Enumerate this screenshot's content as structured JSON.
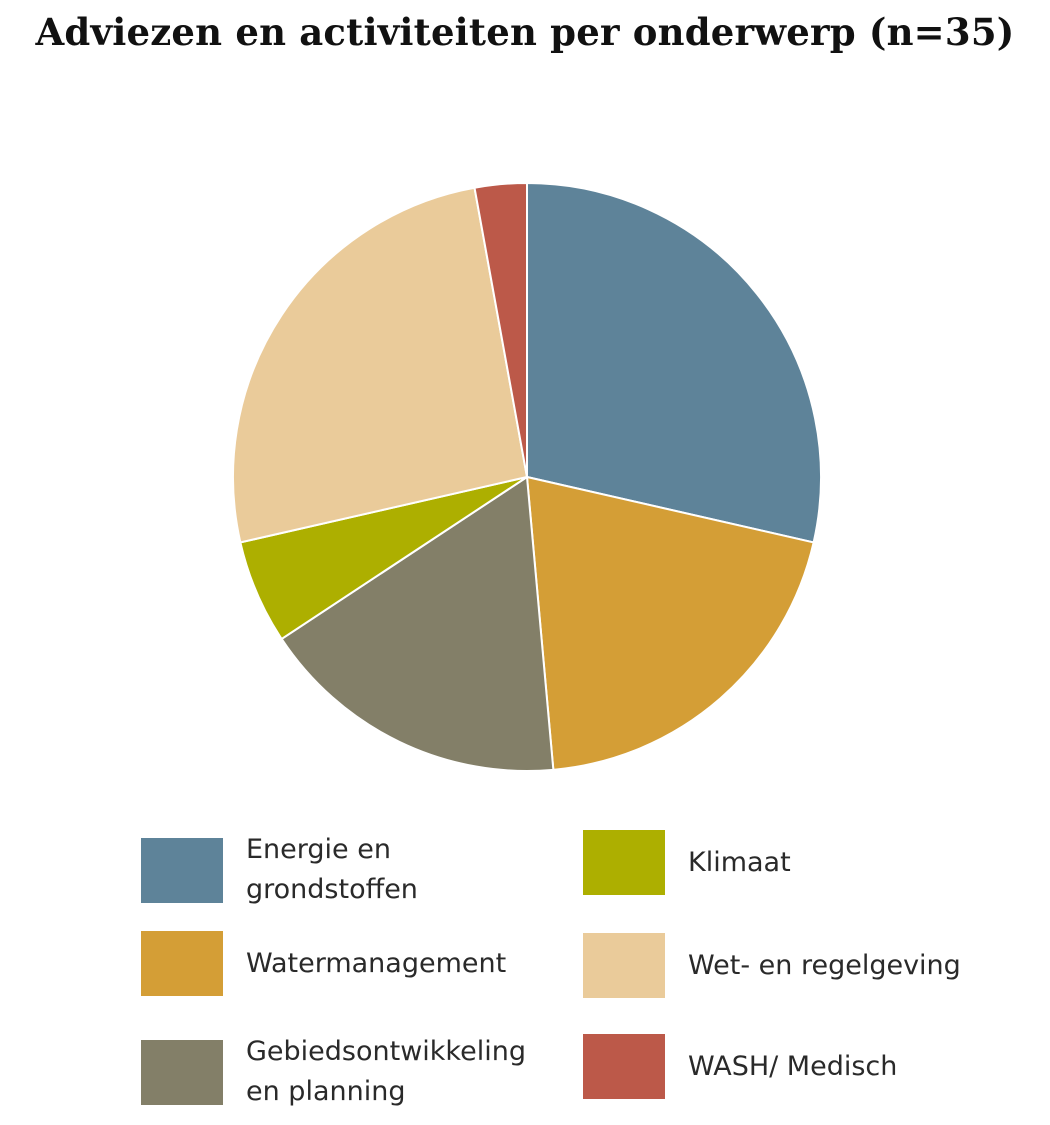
{
  "chart_data": {
    "type": "pie",
    "title": "Adviezen en activiteiten per onderwerp (n=35)",
    "slices": [
      {
        "label": "Energie en grondstoffen",
        "value": 10,
        "color": "#5e8399"
      },
      {
        "label": "Watermanagement",
        "value": 7,
        "color": "#d49e36"
      },
      {
        "label": "Gebiedsontwikkeling en planning",
        "value": 6,
        "color": "#837f68"
      },
      {
        "label": "Klimaat",
        "value": 2,
        "color": "#adaf00"
      },
      {
        "label": "Wet- en regelgeving",
        "value": 9,
        "color": "#eacb9a"
      },
      {
        "label": "WASH/ Medisch",
        "value": 1,
        "color": "#bc5949"
      }
    ],
    "legend_position": "bottom",
    "start_angle": "top (12 o'clock), clockwise"
  }
}
